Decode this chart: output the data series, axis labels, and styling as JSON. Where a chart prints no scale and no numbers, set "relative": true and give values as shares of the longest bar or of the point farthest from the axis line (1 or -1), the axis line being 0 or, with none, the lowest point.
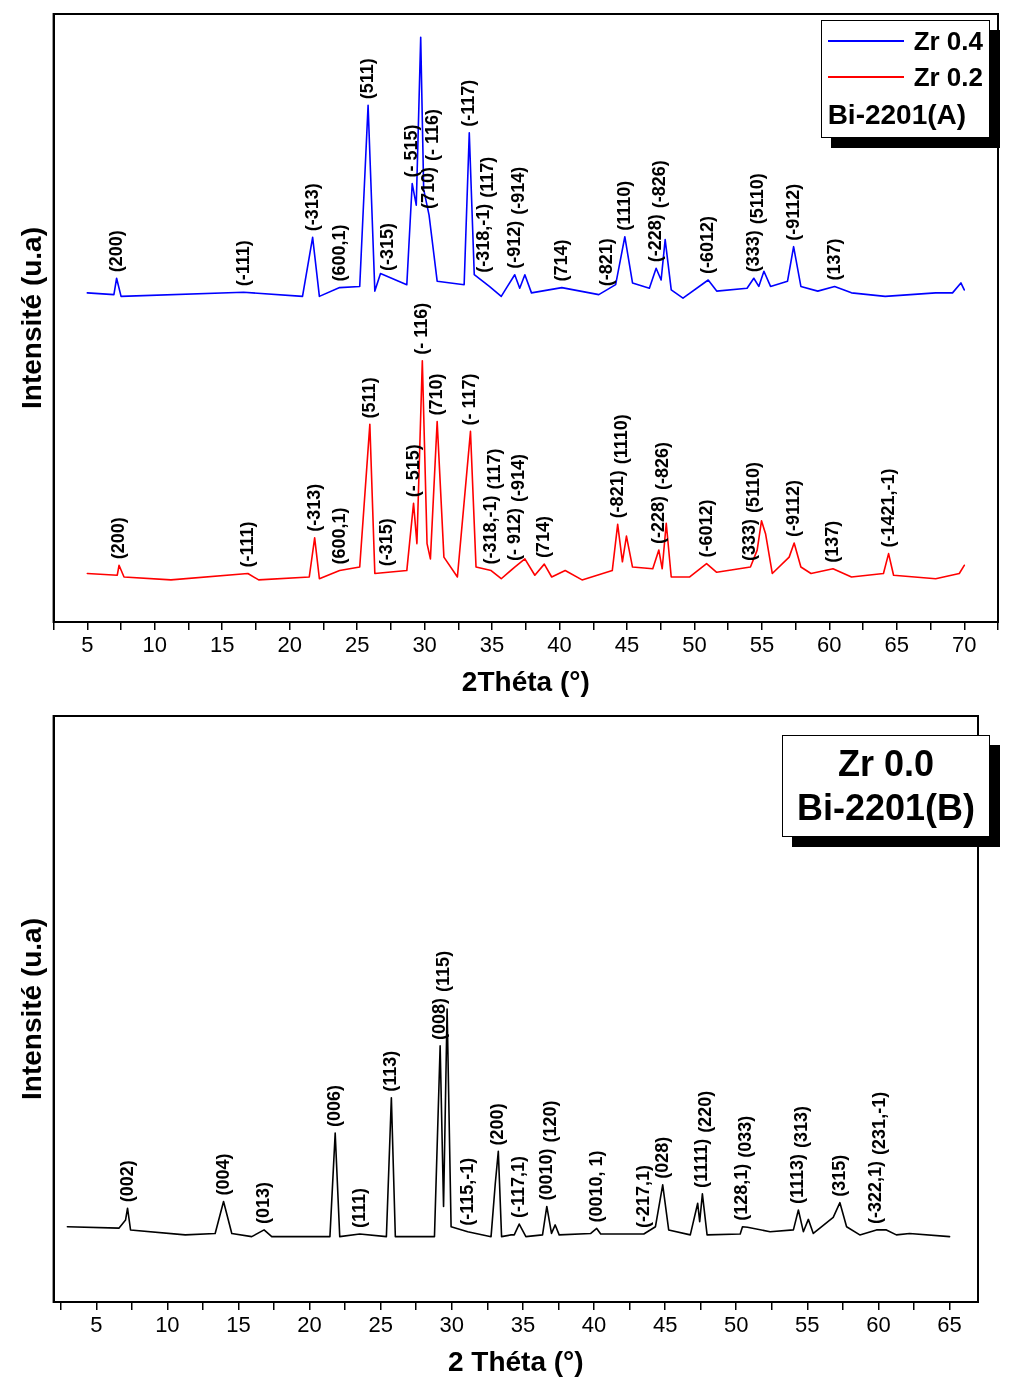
{
  "chart_data": [
    {
      "type": "line",
      "relative": true,
      "xlabel": "2Théta (°)",
      "ylabel": "Intensité (u.a)",
      "legend": "top right",
      "legend_title": "Bi-2201(A)",
      "xlim": [
        2.5,
        72.5
      ],
      "xticks": [
        {
          "value": 2.5,
          "label": null
        },
        5,
        {
          "value": 7.5,
          "label": null
        },
        10,
        {
          "value": 12.5,
          "label": null
        },
        15,
        {
          "value": 17.5,
          "label": null
        },
        20,
        {
          "value": 22.5,
          "label": null
        },
        25,
        {
          "value": 27.5,
          "label": null
        },
        30,
        {
          "value": 32.5,
          "label": null
        },
        35,
        {
          "value": 37.5,
          "label": null
        },
        40,
        {
          "value": 42.5,
          "label": null
        },
        45,
        {
          "value": 47.5,
          "label": null
        },
        50,
        {
          "value": 52.5,
          "label": null
        },
        55,
        {
          "value": 57.5,
          "label": null
        },
        60,
        {
          "value": 62.5,
          "label": null
        },
        65,
        {
          "value": 67.5,
          "label": null
        },
        70,
        {
          "value": 72.5,
          "label": null
        }
      ],
      "series": [
        {
          "name": "Zr 0.4",
          "color": "#0000ff",
          "x": [
            5.0,
            6.97,
            7.17,
            7.5,
            16.58,
            20.95,
            21.7,
            22.2,
            23.7,
            25.19,
            25.81,
            26.31,
            26.73,
            28.68,
            29.08,
            29.38,
            29.71,
            29.93,
            30.33,
            30.93,
            32.93,
            33.31,
            33.68,
            34.8,
            35.68,
            36.68,
            37.05,
            37.43,
            37.92,
            40.17,
            42.91,
            44.16,
            44.84,
            45.41,
            46.66,
            47.16,
            47.53,
            47.83,
            48.28,
            49.15,
            51.02,
            51.65,
            53.9,
            54.4,
            54.77,
            55.15,
            55.64,
            56.9,
            57.35,
            57.89,
            59.14,
            60.39,
            61.64,
            64.14,
            67.88,
            69.13,
            69.75,
            70.0
          ],
          "values": [
            0.563,
            0.56,
            0.588,
            0.557,
            0.564,
            0.557,
            0.658,
            0.557,
            0.572,
            0.574,
            0.884,
            0.566,
            0.596,
            0.577,
            0.75,
            0.713,
            1.0,
            0.74,
            0.696,
            0.583,
            0.577,
            0.837,
            0.594,
            0.574,
            0.557,
            0.594,
            0.571,
            0.594,
            0.563,
            0.572,
            0.56,
            0.577,
            0.659,
            0.58,
            0.571,
            0.605,
            0.585,
            0.654,
            0.568,
            0.554,
            0.585,
            0.566,
            0.571,
            0.588,
            0.574,
            0.6,
            0.574,
            0.583,
            0.642,
            0.574,
            0.566,
            0.574,
            0.563,
            0.557,
            0.563,
            0.563,
            0.58,
            0.568
          ]
        },
        {
          "name": "Zr 0.2",
          "color": "#ff0000",
          "x": [
            5.0,
            7.22,
            7.35,
            7.72,
            11.2,
            16.9,
            17.7,
            21.45,
            21.85,
            22.2,
            23.7,
            25.19,
            25.94,
            26.31,
            28.68,
            29.18,
            29.43,
            29.83,
            30.18,
            30.43,
            30.93,
            31.43,
            32.43,
            33.4,
            33.81,
            34.93,
            35.68,
            36.68,
            37.43,
            38.17,
            38.87,
            39.42,
            40.42,
            41.67,
            43.91,
            44.31,
            44.66,
            44.96,
            45.41,
            46.91,
            47.36,
            47.61,
            47.91,
            48.28,
            49.65,
            50.9,
            51.65,
            54.15,
            54.65,
            54.97,
            55.27,
            55.77,
            57.02,
            57.39,
            57.89,
            58.64,
            60.27,
            61.64,
            64.01,
            64.39,
            64.76,
            67.88,
            69.63,
            70.0
          ],
          "values": [
            0.083,
            0.08,
            0.097,
            0.077,
            0.072,
            0.083,
            0.072,
            0.077,
            0.144,
            0.074,
            0.088,
            0.094,
            0.338,
            0.083,
            0.088,
            0.203,
            0.134,
            0.447,
            0.134,
            0.108,
            0.343,
            0.111,
            0.077,
            0.326,
            0.094,
            0.088,
            0.074,
            0.094,
            0.108,
            0.08,
            0.099,
            0.077,
            0.088,
            0.072,
            0.088,
            0.167,
            0.103,
            0.147,
            0.094,
            0.091,
            0.123,
            0.091,
            0.169,
            0.077,
            0.077,
            0.1,
            0.085,
            0.094,
            0.123,
            0.173,
            0.151,
            0.083,
            0.111,
            0.135,
            0.094,
            0.083,
            0.091,
            0.077,
            0.083,
            0.117,
            0.08,
            0.074,
            0.083,
            0.097
          ]
        }
      ],
      "annotations": [
        {
          "text": "(200)",
          "x": 7.17,
          "y": 0.588
        },
        {
          "text": "(-111)",
          "x": 16.58,
          "y": 0.564
        },
        {
          "text": "(-313)",
          "x": 21.7,
          "y": 0.658
        },
        {
          "text": "(600,1)",
          "x": 23.7,
          "y": 0.572
        },
        {
          "text": "(511)",
          "x": 25.81,
          "y": 0.884
        },
        {
          "text": "(-315)",
          "x": 27.3,
          "y": 0.59
        },
        {
          "text": "(- 515)",
          "x": 29.08,
          "y": 0.75
        },
        {
          "text": "(710)",
          "x": 30.33,
          "y": 0.696
        },
        "(- 116)",
        {
          "text": "(-117)",
          "x": 33.31,
          "y": 0.837
        },
        {
          "text": "(-318,-1)",
          "x": 34.4,
          "y": 0.587
        },
        "(117)",
        {
          "text": "(-912)",
          "x": 36.68,
          "y": 0.594
        },
        "(-914)",
        {
          "text": "(714)",
          "x": 40.17,
          "y": 0.572
        },
        {
          "text": "(-821)",
          "x": 43.5,
          "y": 0.564
        },
        {
          "text": "(1110)",
          "x": 44.84,
          "y": 0.659
        },
        {
          "text": "(-228)",
          "x": 47.16,
          "y": 0.605
        },
        "(-826)",
        {
          "text": "(-6012)",
          "x": 51.02,
          "y": 0.585
        },
        {
          "text": "(333)",
          "x": 54.4,
          "y": 0.588
        },
        "(5110)",
        {
          "text": "(-9112)",
          "x": 57.35,
          "y": 0.642
        },
        {
          "text": "(137)",
          "x": 60.39,
          "y": 0.574
        },
        {
          "text": "(200)",
          "x": 7.35,
          "y": 0.097
        },
        {
          "text": "(-111)",
          "x": 16.9,
          "y": 0.083
        },
        {
          "text": "(-313)",
          "x": 21.85,
          "y": 0.144
        },
        {
          "text": "(600,1)",
          "x": 23.7,
          "y": 0.088
        },
        {
          "text": "(511)",
          "x": 25.94,
          "y": 0.338
        },
        {
          "text": "(-315)",
          "x": 27.2,
          "y": 0.085
        },
        {
          "text": "(- 515)",
          "x": 29.18,
          "y": 0.203
        },
        {
          "text": "(- 116)",
          "x": 29.83,
          "y": 0.447
        },
        {
          "text": "(710)",
          "x": 30.93,
          "y": 0.343
        },
        {
          "text": "(- 117)",
          "x": 33.4,
          "y": 0.326
        },
        {
          "text": "(-318,-1)",
          "x": 34.93,
          "y": 0.088
        },
        "(117)",
        {
          "text": "(- 912)",
          "x": 36.68,
          "y": 0.094
        },
        "(-914)",
        {
          "text": "(714)",
          "x": 38.87,
          "y": 0.099
        },
        {
          "text": "(-821)",
          "x": 44.31,
          "y": 0.167
        },
        "(1110)",
        {
          "text": "(-228)",
          "x": 47.36,
          "y": 0.123
        },
        "(-826)",
        {
          "text": "(-6012)",
          "x": 50.9,
          "y": 0.1
        },
        {
          "text": "(333)",
          "x": 54.15,
          "y": 0.094
        },
        "(5110)",
        {
          "text": "(-9112)",
          "x": 57.39,
          "y": 0.135
        },
        {
          "text": "(137)",
          "x": 60.27,
          "y": 0.091
        },
        {
          "text": "(-1421,-1)",
          "x": 64.39,
          "y": 0.117
        }
      ]
    },
    {
      "type": "line",
      "relative": true,
      "xlabel": "2 Théta (°)",
      "ylabel": "Intensité (u.a)",
      "legend": "top right",
      "legend_title": "Bi-2201(B)",
      "xlim": [
        2,
        67
      ],
      "xticks": [
        {
          "value": 2.5,
          "label": null
        },
        5,
        {
          "value": 7.5,
          "label": null
        },
        10,
        {
          "value": 12.5,
          "label": null
        },
        15,
        {
          "value": 17.5,
          "label": null
        },
        20,
        {
          "value": 22.5,
          "label": null
        },
        25,
        {
          "value": 27.5,
          "label": null
        },
        30,
        {
          "value": 32.5,
          "label": null
        },
        35,
        {
          "value": 37.5,
          "label": null
        },
        40,
        {
          "value": 42.5,
          "label": null
        },
        45,
        {
          "value": 47.5,
          "label": null
        },
        50,
        {
          "value": 52.5,
          "label": null
        },
        55,
        {
          "value": 57.5,
          "label": null
        },
        60,
        {
          "value": 62.5,
          "label": null
        },
        65
      ],
      "series": [
        {
          "name": "Zr 0.0",
          "color": "#000000",
          "x": [
            2.97,
            6.59,
            7.06,
            7.2,
            7.41,
            11.26,
            13.36,
            13.95,
            14.53,
            15.93,
            16.8,
            17.34,
            21.43,
            21.8,
            22.12,
            23.53,
            25.4,
            25.75,
            26.03,
            28.78,
            29.18,
            29.42,
            29.67,
            29.95,
            31.12,
            32.76,
            33.06,
            33.27,
            33.5,
            34.16,
            34.39,
            34.74,
            35.21,
            36.38,
            36.68,
            37.01,
            37.27,
            37.55,
            39.77,
            40.19,
            40.47,
            43.5,
            44.32,
            44.83,
            45.25,
            46.77,
            47.29,
            47.43,
            47.62,
            47.95,
            50.28,
            50.44,
            50.79,
            52.38,
            54.02,
            54.37,
            54.72,
            55.07,
            55.42,
            56.82,
            57.29,
            57.76,
            58.69,
            59.86,
            60.56,
            61.26,
            62.19,
            65.0
          ],
          "values": [
            0.257,
            0.252,
            0.28,
            0.32,
            0.246,
            0.229,
            0.234,
            0.343,
            0.234,
            0.223,
            0.246,
            0.223,
            0.223,
            0.577,
            0.223,
            0.232,
            0.223,
            0.697,
            0.223,
            0.223,
            0.874,
            0.326,
            1.0,
            0.257,
            0.24,
            0.223,
            0.406,
            0.514,
            0.223,
            0.229,
            0.229,
            0.266,
            0.223,
            0.229,
            0.326,
            0.234,
            0.263,
            0.229,
            0.234,
            0.251,
            0.232,
            0.232,
            0.257,
            0.4,
            0.246,
            0.229,
            0.337,
            0.274,
            0.369,
            0.229,
            0.232,
            0.257,
            0.255,
            0.24,
            0.246,
            0.314,
            0.24,
            0.282,
            0.234,
            0.289,
            0.339,
            0.257,
            0.229,
            0.246,
            0.246,
            0.229,
            0.234,
            0.223
          ]
        }
      ],
      "annotations": [
        {
          "text": "(002)",
          "x": 7.2,
          "y": 0.32
        },
        {
          "text": "(004)",
          "x": 13.95,
          "y": 0.343
        },
        {
          "text": "(013)",
          "x": 16.8,
          "y": 0.246
        },
        {
          "text": "(006)",
          "x": 21.8,
          "y": 0.577
        },
        {
          "text": "(111)",
          "x": 23.53,
          "y": 0.232
        },
        {
          "text": "(113)",
          "x": 25.75,
          "y": 0.697
        },
        {
          "text": "(008)",
          "x": 29.18,
          "y": 0.874
        },
        "(115)",
        {
          "text": "(-115,-1)",
          "x": 31.12,
          "y": 0.24
        },
        {
          "text": "(200)",
          "x": 33.27,
          "y": 0.514
        },
        {
          "text": "(-117,1)",
          "x": 34.74,
          "y": 0.266
        },
        {
          "text": "(0010)",
          "x": 36.68,
          "y": 0.326
        },
        "(120)",
        {
          "text": "(0010, 1)",
          "x": 40.19,
          "y": 0.251
        },
        {
          "text": "(-217,1)",
          "x": 43.5,
          "y": 0.232
        },
        {
          "text": "(028)",
          "x": 44.83,
          "y": 0.4
        },
        {
          "text": "(1111)",
          "x": 47.62,
          "y": 0.369
        },
        "(220)",
        {
          "text": "(128,1)",
          "x": 50.44,
          "y": 0.257
        },
        "(033)",
        {
          "text": "(1113)",
          "x": 54.37,
          "y": 0.314
        },
        "(313)",
        {
          "text": "(315)",
          "x": 57.29,
          "y": 0.339
        },
        {
          "text": "(-322,1)",
          "x": 59.86,
          "y": 0.246
        },
        "(231,-1)"
      ]
    }
  ]
}
